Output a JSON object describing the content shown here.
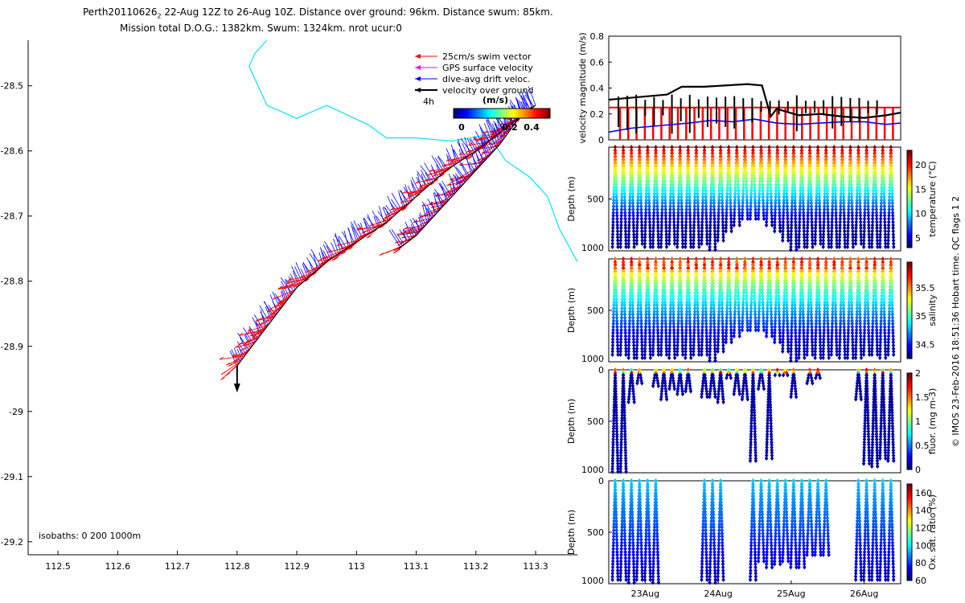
{
  "title": {
    "line1_prefix": "Perth20110626",
    "line1_sub": "2",
    "line1_rest": " 22-Aug 12Z to 26-Aug 10Z. Distance over ground: 96km. Distance swum: 85km.",
    "line2": "Mission total D.O.G.: 1382km. Swum: 1324km. nrot ucur:0"
  },
  "legend": {
    "items": [
      {
        "label": "25cm/s swim vector",
        "color": "#ff0000"
      },
      {
        "label": "GPS surface velocity",
        "color": "#ff00ff"
      },
      {
        "label": "dive-avg drift veloc.",
        "color": "#0000ff"
      },
      {
        "label": "velocity over ground",
        "color": "#000000"
      }
    ],
    "time_label": "4h",
    "colorbar_unit": "(m/s)",
    "colorbar_ticks": [
      "0",
      "0.2",
      "0.4"
    ]
  },
  "isobaths_label": "isobaths: 0   200   1000m",
  "side_label": "© IMOS 23-Feb-2016 18:51:36 Hobart time. QC flags 1  2",
  "colors": {
    "drift": "#0000ff",
    "swim": "#ff0000",
    "ground": "#000000",
    "isobath": "#00e5ee"
  },
  "chart_data": [
    {
      "type": "scatter",
      "name": "map",
      "xlabel": "",
      "ylabel": "",
      "xlim": [
        112.45,
        113.37
      ],
      "ylim": [
        -29.22,
        -28.43
      ],
      "xticks": [
        112.5,
        112.6,
        112.7,
        112.8,
        112.9,
        113.0,
        113.1,
        113.2,
        113.3
      ],
      "xticklabels": [
        "112.5",
        "112.6",
        "112.7",
        "112.8",
        "112.9",
        "113",
        "113.1",
        "113.2",
        "113.3"
      ],
      "yticks": [
        -28.5,
        -28.6,
        -28.7,
        -28.8,
        -28.9,
        -29.0,
        -29.1,
        -29.2
      ],
      "yticklabels": [
        "-28.5",
        "-28.6",
        "-28.7",
        "-28.8",
        "-28.9",
        "-29",
        "-29.1",
        "-29.2"
      ],
      "track": [
        [
          112.8,
          -28.93
        ],
        [
          112.85,
          -28.87
        ],
        [
          112.9,
          -28.81
        ],
        [
          112.95,
          -28.77
        ],
        [
          113.0,
          -28.74
        ],
        [
          113.05,
          -28.71
        ],
        [
          113.1,
          -28.67
        ],
        [
          113.15,
          -28.63
        ],
        [
          113.2,
          -28.6
        ],
        [
          113.25,
          -28.565
        ],
        [
          113.3,
          -28.53
        ],
        [
          113.28,
          -28.54
        ],
        [
          113.24,
          -28.59
        ],
        [
          113.19,
          -28.64
        ],
        [
          113.14,
          -28.69
        ],
        [
          113.1,
          -28.73
        ],
        [
          113.07,
          -28.75
        ]
      ],
      "isobath": [
        [
          112.85,
          -28.43
        ],
        [
          112.83,
          -28.45
        ],
        [
          112.82,
          -28.47
        ],
        [
          112.85,
          -28.53
        ],
        [
          112.9,
          -28.55
        ],
        [
          112.95,
          -28.53
        ],
        [
          113.02,
          -28.56
        ],
        [
          113.05,
          -28.58
        ],
        [
          113.1,
          -28.58
        ],
        [
          113.16,
          -28.585
        ],
        [
          113.22,
          -28.575
        ],
        [
          113.25,
          -28.615
        ],
        [
          113.29,
          -28.64
        ],
        [
          113.32,
          -28.67
        ],
        [
          113.34,
          -28.72
        ],
        [
          113.37,
          -28.77
        ]
      ]
    },
    {
      "type": "line",
      "name": "velocity",
      "ylabel": "velocity magnitude (m/s)",
      "xlim": [
        22.5,
        26.5
      ],
      "ylim": [
        0,
        0.8
      ],
      "yticks": [
        0,
        0.2,
        0.4,
        0.6,
        0.8
      ],
      "yticklabels": [
        "0",
        "0.2",
        "0.4",
        "0.6",
        "0.8"
      ],
      "series": [
        {
          "values_x": [
            22.5,
            22.8,
            23.2,
            23.6,
            23.9,
            24.2,
            24.5,
            24.8,
            25.1,
            25.4,
            25.7,
            26.0,
            26.3,
            26.5
          ],
          "values_y": [
            0.06,
            0.09,
            0.11,
            0.13,
            0.15,
            0.14,
            0.16,
            0.13,
            0.12,
            0.13,
            0.14,
            0.14,
            0.12,
            0.13
          ],
          "color": "#0000ff"
        },
        {
          "values_x": [
            22.5,
            22.9,
            23.3,
            23.5,
            23.8,
            24.1,
            24.4,
            24.6,
            24.72,
            24.8,
            25.1,
            25.4,
            25.7,
            26.0,
            26.3,
            26.5
          ],
          "values_y": [
            0.31,
            0.33,
            0.35,
            0.41,
            0.41,
            0.42,
            0.43,
            0.42,
            0.18,
            0.24,
            0.19,
            0.2,
            0.18,
            0.17,
            0.19,
            0.21
          ],
          "color": "#000000"
        }
      ],
      "threshold": 0.25
    },
    {
      "type": "heatmap",
      "name": "temperature",
      "ylabel": "Depth (m)",
      "clabel": "temperature (°C)",
      "ylim": [
        0,
        1000
      ],
      "yticks": [
        500,
        1000
      ],
      "yticklabels": [
        "500",
        "1000"
      ],
      "clim": [
        3,
        23
      ],
      "cticks": [
        5,
        10,
        15,
        20
      ],
      "cticklabels": [
        "5",
        "10",
        "15",
        "20"
      ],
      "surface_value": 22,
      "deep_value": 4
    },
    {
      "type": "heatmap",
      "name": "salinity",
      "ylabel": "Depth (m)",
      "clabel": "salinity",
      "ylim": [
        0,
        1000
      ],
      "yticks": [
        500,
        1000
      ],
      "yticklabels": [
        "500",
        "1000"
      ],
      "clim": [
        34.25,
        35.95
      ],
      "cticks": [
        34.5,
        35,
        35.5
      ],
      "cticklabels": [
        "34.5",
        "35",
        "35.5"
      ],
      "surface_value": 35.6,
      "deep_value": 34.4
    },
    {
      "type": "heatmap",
      "name": "fluorescence",
      "ylabel": "Depth (m)",
      "clabel": "fluor. (mg m-3)",
      "ylim": [
        0,
        1000
      ],
      "yticks": [
        0,
        500,
        1000
      ],
      "yticklabels": [
        "0",
        "500",
        "1000"
      ],
      "clim": [
        0,
        2
      ],
      "cticks": [
        0,
        0.5,
        1,
        1.5,
        2
      ],
      "cticklabels": [
        "0",
        "0.5",
        "1",
        "1.5",
        "2"
      ]
    },
    {
      "type": "heatmap",
      "name": "oxygen",
      "ylabel": "Depth (m)",
      "clabel": "Ox. sat. ratio (%)",
      "ylim": [
        0,
        1000
      ],
      "yticks": [
        0,
        500,
        1000
      ],
      "yticklabels": [
        "0",
        "500",
        "1000"
      ],
      "clim": [
        60,
        170
      ],
      "cticks": [
        60,
        80,
        100,
        120,
        140,
        160
      ],
      "cticklabels": [
        "60",
        "80",
        "100",
        "120",
        "140",
        "160"
      ],
      "xticklabels": [
        "23Aug",
        "24Aug",
        "25Aug",
        "26Aug"
      ]
    }
  ]
}
